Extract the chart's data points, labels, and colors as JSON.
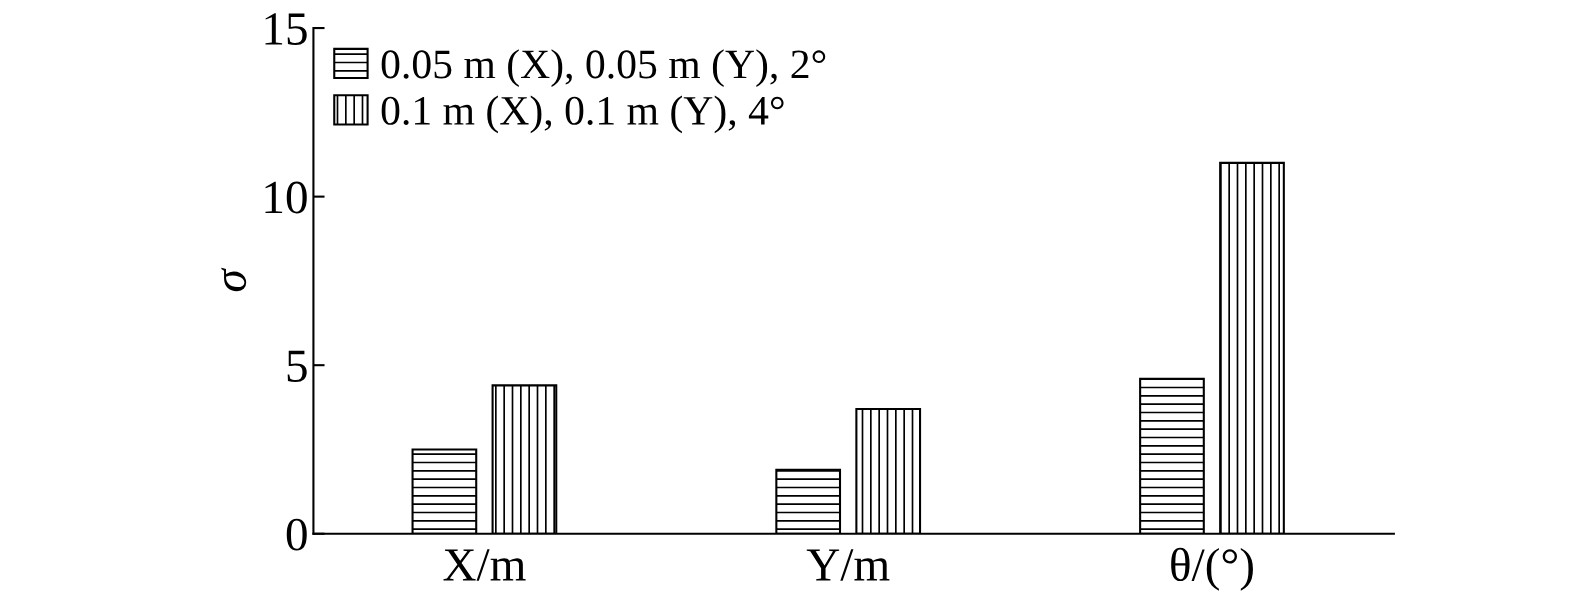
{
  "chart_data": {
    "type": "bar",
    "ylabel": "σ",
    "categories": [
      "X/m",
      "Y/m",
      "θ/(°)"
    ],
    "series": [
      {
        "name": "0.05 m (X), 0.05 m (Y), 2°",
        "color": "#000000",
        "values": [
          2.5,
          1.9,
          4.6
        ]
      },
      {
        "name": "0.1 m (X), 0.1 m (Y), 4°",
        "color": "#000000",
        "values": [
          4.4,
          3.7,
          11.0
        ]
      }
    ],
    "ylim": [
      0,
      15
    ],
    "yticks": [
      0,
      5,
      10,
      15
    ],
    "grid": false,
    "legend": "top left"
  }
}
